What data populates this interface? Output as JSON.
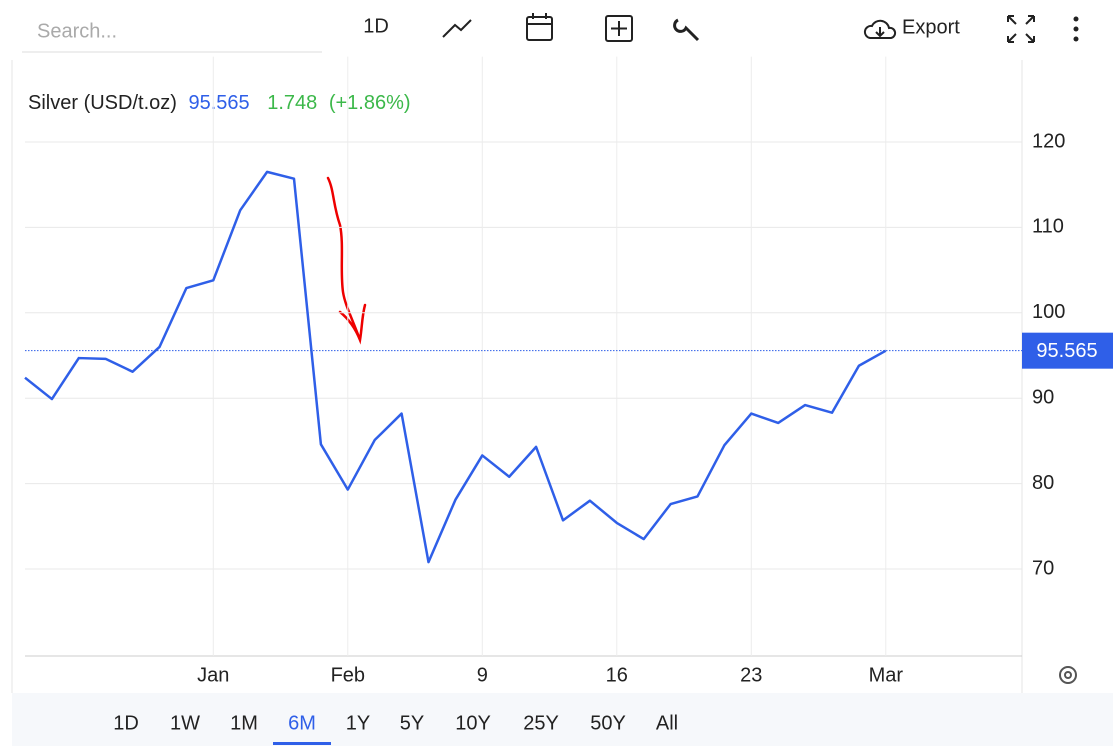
{
  "toolbar": {
    "search_placeholder": "Search...",
    "interval": "1D",
    "export": "Export"
  },
  "chart_data": {
    "type": "line",
    "title": "Silver (USD/t.oz)",
    "price": 95.565,
    "change": "1.748",
    "change_pct": "(+1.86%)",
    "categories": [
      null,
      null,
      null,
      null,
      null,
      null,
      null,
      "Jan",
      null,
      null,
      null,
      null,
      "Feb",
      null,
      null,
      null,
      null,
      "9",
      null,
      null,
      null,
      null,
      "16",
      null,
      null,
      null,
      null,
      "23",
      null,
      null,
      null,
      null,
      "Mar"
    ],
    "series": [
      {
        "name": "Silver (USD/t.oz)",
        "color": "#2f5fe8",
        "values": [
          92.4,
          89.9,
          94.7,
          94.6,
          93.1,
          96.0,
          102.9,
          103.8,
          112.0,
          116.5,
          115.7,
          84.6,
          79.3,
          85.1,
          88.2,
          70.8,
          78.1,
          83.3,
          80.8,
          84.3,
          75.7,
          78.0,
          75.4,
          73.5,
          77.6,
          78.5,
          84.5,
          88.2,
          87.1,
          89.2,
          88.3,
          93.8,
          95.565
        ]
      }
    ],
    "ylim": [
      60,
      130
    ],
    "yticks": [
      70,
      80,
      90,
      100,
      110,
      120
    ],
    "grid": true,
    "change_color": "#3cb84a"
  },
  "ranges": {
    "items": [
      "1D",
      "1W",
      "1M",
      "6M",
      "1Y",
      "5Y",
      "10Y",
      "25Y",
      "50Y",
      "All"
    ],
    "active": 3
  }
}
